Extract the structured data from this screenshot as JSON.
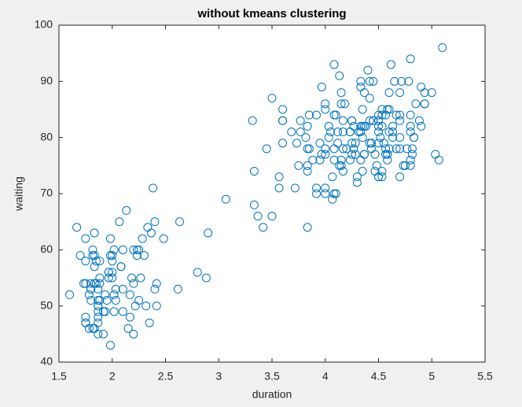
{
  "chart_data": {
    "type": "scatter",
    "title": "without kmeans clustering",
    "x_label": "duration",
    "y_label": "waiting",
    "marker_color": "#0072bd",
    "grid": false,
    "xlim": [
      1.5,
      5.5
    ],
    "xticks": [
      1.5,
      2,
      2.5,
      3,
      3.5,
      4,
      4.5,
      5,
      5.5
    ],
    "ylim": [
      40,
      100
    ],
    "yticks": [
      40,
      50,
      60,
      70,
      80,
      90,
      100
    ],
    "x": [
      3.6,
      1.8,
      3.333,
      2.283,
      4.533,
      2.883,
      4.7,
      3.6,
      1.95,
      4.35,
      1.833,
      3.917,
      4.2,
      1.75,
      4.7,
      2.167,
      1.75,
      4.8,
      1.6,
      4.25,
      1.8,
      1.75,
      3.45,
      3.067,
      4.533,
      3.6,
      1.967,
      4.083,
      3.85,
      4.433,
      4.3,
      4.467,
      3.367,
      4.033,
      3.833,
      2.017,
      1.867,
      4.833,
      1.833,
      4.783,
      4.35,
      1.883,
      4.567,
      1.75,
      4.533,
      3.317,
      3.833,
      2.1,
      4.633,
      2,
      4.8,
      4.716,
      1.833,
      4.833,
      1.733,
      4.883,
      3.717,
      1.667,
      4.567,
      4.317,
      2.233,
      4.5,
      1.75,
      4.8,
      1.817,
      4.4,
      4.167,
      4.7,
      2.067,
      4.7,
      4.033,
      1.967,
      4.5,
      4,
      1.983,
      5.067,
      2.017,
      4.567,
      3.883,
      3.6,
      4.133,
      4.333,
      4.1,
      2.633,
      4.067,
      4.933,
      3.95,
      4.517,
      2.167,
      4,
      2.2,
      4.333,
      1.867,
      4.817,
      1.833,
      4.3,
      4.667,
      3.75,
      1.867,
      4.9,
      2.483,
      4.367,
      2.1,
      4.5,
      4.05,
      1.867,
      4.7,
      1.783,
      4.85,
      3.683,
      4.733,
      2.3,
      4.9,
      4.417,
      1.7,
      4.633,
      2.317,
      4.6,
      1.817,
      4.417,
      2.617,
      4.067,
      4.25,
      1.967,
      4.6,
      3.767,
      1.917,
      4.5,
      2.267,
      4.65,
      1.867,
      4.167,
      2.8,
      4.333,
      1.833,
      4.383,
      1.883,
      4.933,
      2.033,
      3.733,
      4.233,
      2.233,
      4.533,
      4.817,
      4.333,
      1.983,
      4.633,
      2.017,
      5.1,
      1.8,
      5.033,
      4,
      2.4,
      4.6,
      3.567,
      4,
      4.5,
      4.083,
      1.8,
      3.967,
      2.2,
      4.15,
      2,
      3.833,
      3.5,
      4.583,
      2.367,
      5,
      1.933,
      4.617,
      1.917,
      2.083,
      4.583,
      3.333,
      4.167,
      4.333,
      4.5,
      2.417,
      4,
      4.167,
      1.883,
      4.583,
      4.25,
      3.767,
      2.033,
      4.433,
      4.083,
      1.833,
      4.417,
      2.183,
      4.8,
      1.833,
      4.8,
      4.1,
      3.966,
      4.233,
      3.5,
      4.366,
      2.25,
      4.667,
      2.1,
      4.35,
      4.133,
      1.867,
      4.6,
      1.783,
      4.367,
      3.85,
      1.933,
      4.5,
      2.383,
      4.7,
      1.867,
      3.833,
      3.417,
      4.233,
      2.4,
      4.8,
      2,
      4.15,
      1.867,
      4.267,
      1.75,
      4.483,
      4,
      4.117,
      4.083,
      4.267,
      3.917,
      4.55,
      4.083,
      2.417,
      4.183,
      2.217,
      4.45,
      1.883,
      1.85,
      4.283,
      3.95,
      2.333,
      4.15,
      2.35,
      4.933,
      2.9,
      4.583,
      3.833,
      2.083,
      4.367,
      2.133,
      4.35,
      2.2,
      4.45,
      3.567,
      4.5,
      4.15,
      3.817,
      3.917,
      4.45,
      2,
      4.283,
      4.767,
      4.533,
      1.85,
      4.25,
      1.983,
      2.25,
      4.75,
      4.117,
      2.15,
      4.417,
      1.817,
      4.467
    ],
    "y": [
      79,
      54,
      74,
      62,
      85,
      55,
      88,
      85,
      51,
      85,
      54,
      84,
      78,
      47,
      83,
      52,
      62,
      84,
      52,
      79,
      51,
      47,
      78,
      69,
      74,
      83,
      55,
      76,
      78,
      79,
      73,
      77,
      66,
      80,
      74,
      52,
      48,
      80,
      59,
      90,
      80,
      58,
      84,
      58,
      73,
      83,
      64,
      53,
      82,
      59,
      75,
      90,
      54,
      80,
      54,
      83,
      71,
      64,
      77,
      81,
      59,
      84,
      48,
      82,
      60,
      92,
      78,
      78,
      65,
      73,
      82,
      56,
      79,
      71,
      62,
      76,
      60,
      78,
      76,
      83,
      75,
      82,
      70,
      65,
      73,
      88,
      76,
      80,
      48,
      86,
      60,
      90,
      50,
      78,
      63,
      72,
      84,
      75,
      51,
      82,
      62,
      88,
      49,
      83,
      81,
      47,
      84,
      52,
      86,
      81,
      75,
      59,
      89,
      79,
      59,
      81,
      50,
      85,
      59,
      87,
      53,
      69,
      77,
      56,
      88,
      81,
      45,
      82,
      55,
      90,
      45,
      83,
      56,
      89,
      46,
      82,
      51,
      86,
      53,
      79,
      81,
      60,
      82,
      77,
      76,
      59,
      80,
      49,
      96,
      53,
      77,
      77,
      65,
      81,
      71,
      70,
      81,
      93,
      53,
      89,
      45,
      86,
      58,
      78,
      66,
      76,
      63,
      88,
      52,
      93,
      49,
      57,
      77,
      68,
      81,
      81,
      73,
      50,
      85,
      74,
      55,
      77,
      83,
      83,
      51,
      78,
      84,
      46,
      83,
      55,
      81,
      57,
      76,
      84,
      77,
      81,
      87,
      77,
      51,
      78,
      60,
      82,
      91,
      53,
      78,
      46,
      77,
      84,
      49,
      83,
      71,
      80,
      49,
      75,
      64,
      76,
      53,
      94,
      55,
      76,
      50,
      82,
      54,
      75,
      78,
      79,
      78,
      78,
      70,
      79,
      70,
      54,
      86,
      50,
      90,
      54,
      54,
      77,
      79,
      64,
      75,
      47,
      86,
      63,
      85,
      82,
      57,
      82,
      67,
      74,
      54,
      83,
      73,
      73,
      88,
      80,
      71,
      83,
      56,
      79,
      78,
      84,
      58,
      83,
      43,
      60,
      75,
      81,
      46,
      90,
      46,
      74
    ]
  }
}
